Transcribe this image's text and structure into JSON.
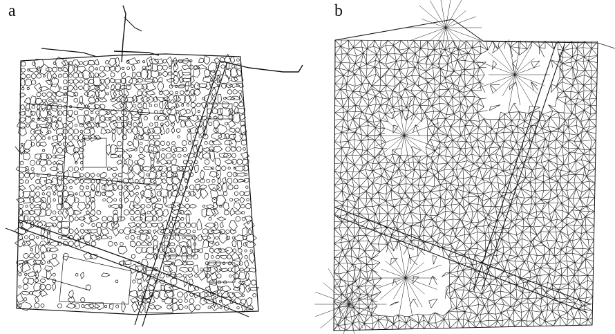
{
  "panels": [
    {
      "label": "a",
      "stroke_color": "#111111"
    },
    {
      "label": "b",
      "stroke_color": "#111111"
    }
  ]
}
